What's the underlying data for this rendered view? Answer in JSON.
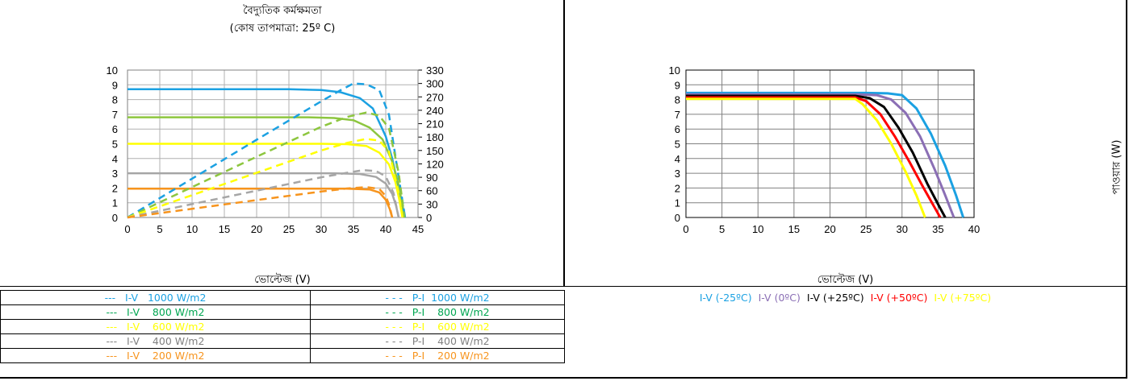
{
  "left_panel": {
    "title_line1": "বৈদ্যুতিক কর্মক্ষমতা",
    "title_line2": "(কোষ তাপমাত্রা: 25º C)",
    "xlabel": "ভোল্টেজ (V)"
  },
  "right_panel": {
    "xlabel": "ভোল্টেজ (V)",
    "right_axis_label": "পাওয়ার (W)"
  },
  "legend_table": {
    "rows": [
      {
        "iv": "---   I-V   1000 W/m2",
        "pi": "- - -   P-I  1000 W/m2",
        "color": "#1BA1E2"
      },
      {
        "iv": "---   I-V    800 W/m2",
        "pi": "- - -   P-I    800 W/m2",
        "color": "#00A651"
      },
      {
        "iv": "---   I-V    600 W/m2",
        "pi": "- - -   P-I    600 W/m2",
        "color": "#FFFF00"
      },
      {
        "iv": "---   I-V    400 W/m2",
        "pi": "- - -   P-I    400 W/m2",
        "color": "#808080"
      },
      {
        "iv": "---   I-V    200 W/m2",
        "pi": "- - -   P-I    200 W/m2",
        "color": "#F7941D"
      }
    ]
  },
  "temp_legend": [
    {
      "label": "I-V (-25ºC)",
      "color": "#1BA1E2"
    },
    {
      "label": "I-V (0ºC)",
      "color": "#8B6FB5"
    },
    {
      "label": "I-V (+25ºC)",
      "color": "#000000"
    },
    {
      "label": "I-V (+50ºC)",
      "color": "#FF0000"
    },
    {
      "label": "I-V (+75ºC)",
      "color": "#FFFF00"
    }
  ],
  "chart_data": [
    {
      "type": "line",
      "title": "বৈদ্যুতিক কর্মক্ষমতা",
      "subtitle": "(কোষ তাপমাত্রা: 25º C)",
      "xlabel": "ভোল্টেজ (V)",
      "xlim": [
        0,
        45
      ],
      "x_ticks": [
        0,
        5,
        10,
        15,
        20,
        25,
        30,
        35,
        40,
        45
      ],
      "ylim": [
        0,
        10
      ],
      "y_ticks": [
        0,
        1,
        2,
        3,
        4,
        5,
        6,
        7,
        8,
        9,
        10
      ],
      "y2lim": [
        0,
        330
      ],
      "y2_ticks": [
        0,
        30,
        60,
        90,
        120,
        150,
        180,
        210,
        240,
        270,
        300,
        330
      ],
      "grid": true,
      "series": [
        {
          "name": "I-V 1000 W/m2",
          "color": "#1BA1E2",
          "axis": "left",
          "dash": false,
          "x": [
            0,
            25,
            30,
            33,
            36,
            38,
            40,
            41,
            42,
            42.6,
            43
          ],
          "y": [
            8.7,
            8.7,
            8.65,
            8.5,
            8.1,
            7.4,
            5.5,
            4.0,
            2.0,
            0.8,
            0
          ]
        },
        {
          "name": "I-V 800 W/m2",
          "color": "#8DC63F",
          "axis": "left",
          "dash": false,
          "x": [
            0,
            28,
            32,
            35,
            37.5,
            39.5,
            41,
            42,
            42.5,
            42.9
          ],
          "y": [
            6.8,
            6.8,
            6.75,
            6.6,
            6.1,
            5.3,
            3.8,
            2.2,
            1.0,
            0
          ]
        },
        {
          "name": "I-V 600 W/m2",
          "color": "#FFFF00",
          "axis": "left",
          "dash": false,
          "x": [
            0,
            30,
            34,
            37,
            39,
            40.5,
            41.5,
            42.1,
            42.6
          ],
          "y": [
            5.0,
            5.0,
            4.97,
            4.85,
            4.4,
            3.6,
            2.4,
            1.2,
            0
          ]
        },
        {
          "name": "I-V 400 W/m2",
          "color": "#A6A6A6",
          "axis": "left",
          "dash": false,
          "x": [
            0,
            32,
            36,
            38.5,
            40,
            41,
            41.6,
            42
          ],
          "y": [
            3.0,
            3.0,
            2.95,
            2.75,
            2.3,
            1.6,
            0.8,
            0
          ]
        },
        {
          "name": "I-V 200 W/m2",
          "color": "#F7941D",
          "axis": "left",
          "dash": false,
          "x": [
            0,
            34,
            37.5,
            39,
            40,
            40.6,
            41
          ],
          "y": [
            1.95,
            1.95,
            1.9,
            1.7,
            1.2,
            0.6,
            0
          ]
        },
        {
          "name": "P-I 1000 W/m2",
          "color": "#1BA1E2",
          "axis": "right",
          "dash": true,
          "x": [
            0,
            10,
            20,
            30,
            33,
            35,
            37,
            39,
            40.5,
            42,
            43
          ],
          "y": [
            0,
            87,
            174,
            260,
            285,
            300,
            298,
            285,
            230,
            90,
            0
          ]
        },
        {
          "name": "P-I 800 W/m2",
          "color": "#8DC63F",
          "axis": "right",
          "dash": true,
          "x": [
            0,
            10,
            20,
            30,
            34,
            37,
            39,
            40.5,
            42,
            42.9
          ],
          "y": [
            0,
            68,
            136,
            203,
            225,
            235,
            228,
            200,
            100,
            0
          ]
        },
        {
          "name": "P-I 600 W/m2",
          "color": "#FFFF00",
          "axis": "right",
          "dash": true,
          "x": [
            0,
            10,
            20,
            30,
            34,
            37,
            39,
            40.5,
            42,
            42.6
          ],
          "y": [
            0,
            50,
            100,
            150,
            167,
            176,
            172,
            148,
            55,
            0
          ]
        },
        {
          "name": "P-I 400 W/m2",
          "color": "#A6A6A6",
          "axis": "right",
          "dash": true,
          "x": [
            0,
            10,
            20,
            30,
            34,
            36.5,
            38.5,
            40,
            41.2,
            42
          ],
          "y": [
            0,
            30,
            60,
            90,
            100,
            106,
            104,
            92,
            55,
            0
          ]
        },
        {
          "name": "P-I 200 W/m2",
          "color": "#F7941D",
          "axis": "right",
          "dash": true,
          "x": [
            0,
            10,
            20,
            30,
            34,
            37,
            39,
            40,
            40.6,
            41
          ],
          "y": [
            0,
            19.5,
            39,
            58,
            65,
            68,
            64,
            48,
            25,
            0
          ]
        }
      ]
    },
    {
      "type": "line",
      "xlabel": "ভোল্টেজ (V)",
      "xlim": [
        0,
        40
      ],
      "x_ticks": [
        0,
        5,
        10,
        15,
        20,
        25,
        30,
        35,
        40
      ],
      "ylim": [
        0,
        10
      ],
      "y_ticks": [
        0,
        1,
        2,
        3,
        4,
        5,
        6,
        7,
        8,
        9,
        10
      ],
      "grid": true,
      "series": [
        {
          "name": "I-V (-25ºC)",
          "color": "#1BA1E2",
          "x": [
            0,
            25,
            28,
            30,
            32,
            34,
            36,
            37.5,
            38.5
          ],
          "y": [
            8.45,
            8.45,
            8.42,
            8.3,
            7.4,
            5.7,
            3.5,
            1.5,
            0
          ]
        },
        {
          "name": "I-V (0ºC)",
          "color": "#8B6FB5",
          "x": [
            0,
            24,
            26.5,
            28.5,
            30.5,
            32.5,
            34.5,
            36,
            37.2
          ],
          "y": [
            8.35,
            8.35,
            8.3,
            8.0,
            7.1,
            5.5,
            3.3,
            1.5,
            0
          ]
        },
        {
          "name": "I-V (+25ºC)",
          "color": "#000000",
          "x": [
            0,
            23.5,
            25.5,
            27.5,
            29.5,
            31.5,
            33.5,
            35,
            36
          ],
          "y": [
            8.25,
            8.25,
            8.1,
            7.5,
            6.1,
            4.4,
            2.3,
            0.9,
            0
          ]
        },
        {
          "name": "I-V (+50ºC)",
          "color": "#FF0000",
          "x": [
            0,
            23.5,
            25,
            27,
            29,
            31,
            33,
            34.5,
            35.3
          ],
          "y": [
            8.15,
            8.15,
            7.9,
            7.0,
            5.5,
            3.8,
            2.0,
            0.7,
            0
          ]
        },
        {
          "name": "I-V (+75ºC)",
          "color": "#FFFF00",
          "x": [
            0,
            23.5,
            24.5,
            26.5,
            28.5,
            30.5,
            32,
            33.2
          ],
          "y": [
            8.05,
            8.05,
            7.7,
            6.6,
            5.0,
            3.1,
            1.5,
            0
          ]
        }
      ]
    }
  ]
}
